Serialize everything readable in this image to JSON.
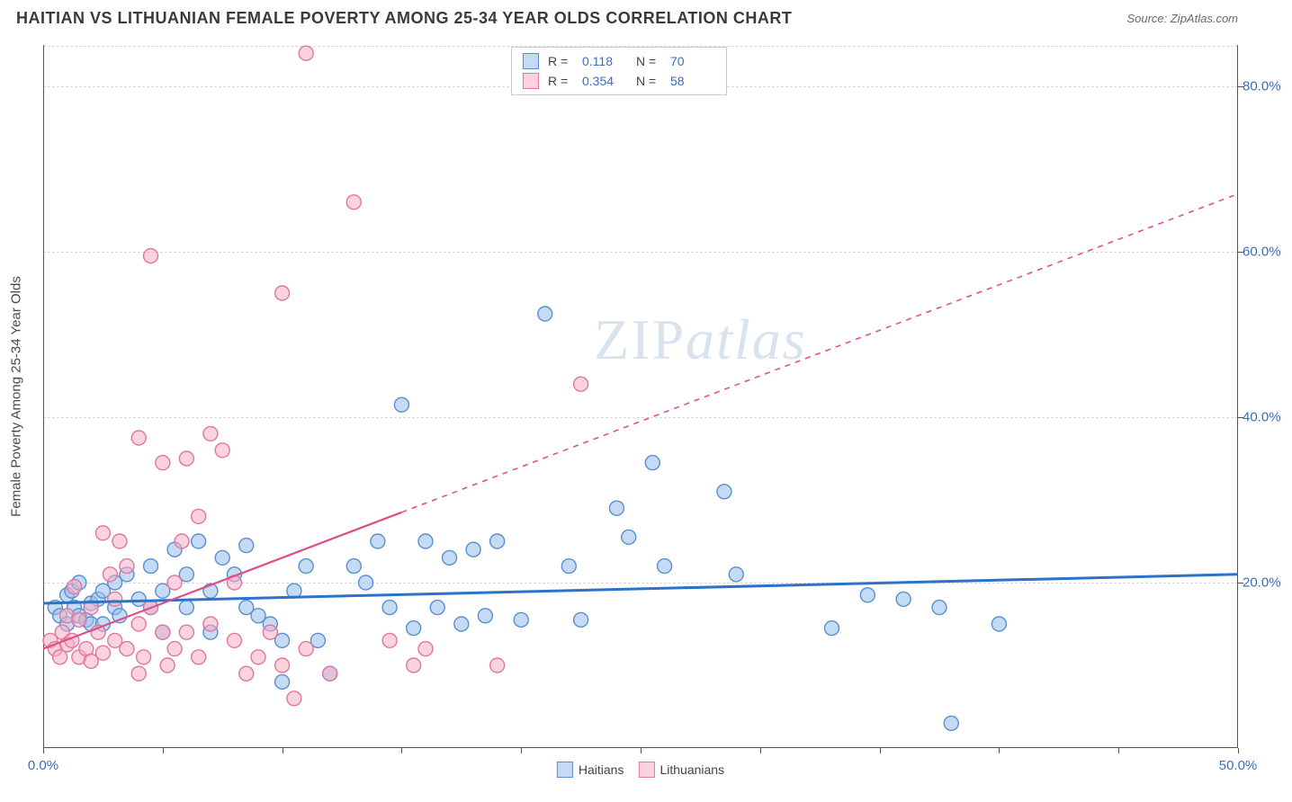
{
  "title": "HAITIAN VS LITHUANIAN FEMALE POVERTY AMONG 25-34 YEAR OLDS CORRELATION CHART",
  "source": "Source: ZipAtlas.com",
  "y_axis_label": "Female Poverty Among 25-34 Year Olds",
  "watermark_a": "ZIP",
  "watermark_b": "atlas",
  "chart": {
    "type": "scatter",
    "xlim": [
      0,
      50
    ],
    "ylim": [
      0,
      85
    ],
    "x_ticks": [
      0,
      5,
      10,
      15,
      20,
      25,
      30,
      35,
      40,
      45,
      50
    ],
    "x_tick_labels": {
      "0": "0.0%",
      "50": "50.0%"
    },
    "y_gridlines": [
      20,
      40,
      60,
      80
    ],
    "y_tick_labels": {
      "20": "20.0%",
      "40": "40.0%",
      "60": "60.0%",
      "80": "80.0%"
    },
    "background_color": "#ffffff",
    "grid_color": "#d8d8d8",
    "axis_color": "#555555",
    "tick_label_color": "#3d6db5",
    "marker_radius": 8,
    "marker_stroke_width": 1.4,
    "series": [
      {
        "name": "Haitians",
        "fill": "rgba(150,190,235,0.55)",
        "stroke": "#5a8fd0",
        "r_value": "0.118",
        "n_value": "70",
        "trend": {
          "x1": 0,
          "y1": 17.5,
          "x2": 50,
          "y2": 21.0,
          "solid_until_x": 50,
          "color": "#2b72c9",
          "width": 3
        },
        "points": [
          [
            0.5,
            17
          ],
          [
            0.7,
            16
          ],
          [
            1.0,
            18.5
          ],
          [
            1.0,
            15
          ],
          [
            1.2,
            19
          ],
          [
            1.3,
            17
          ],
          [
            1.5,
            16
          ],
          [
            1.8,
            15.5
          ],
          [
            1.5,
            20
          ],
          [
            2.0,
            17.5
          ],
          [
            2.0,
            15
          ],
          [
            2.3,
            18
          ],
          [
            2.5,
            19
          ],
          [
            2.5,
            15
          ],
          [
            3.0,
            17
          ],
          [
            3.0,
            20
          ],
          [
            3.2,
            16
          ],
          [
            3.5,
            21
          ],
          [
            4.0,
            18
          ],
          [
            4.5,
            17
          ],
          [
            4.5,
            22
          ],
          [
            5.0,
            19
          ],
          [
            5.0,
            14
          ],
          [
            5.5,
            24
          ],
          [
            6.0,
            17
          ],
          [
            6.0,
            21
          ],
          [
            6.5,
            25
          ],
          [
            7.0,
            19
          ],
          [
            7.5,
            23
          ],
          [
            7.0,
            14
          ],
          [
            8.0,
            21
          ],
          [
            8.5,
            17
          ],
          [
            8.5,
            24.5
          ],
          [
            9.0,
            16
          ],
          [
            9.5,
            15
          ],
          [
            10.0,
            13
          ],
          [
            10.0,
            8
          ],
          [
            10.5,
            19
          ],
          [
            11.0,
            22
          ],
          [
            11.5,
            13
          ],
          [
            12.0,
            9
          ],
          [
            13.0,
            22
          ],
          [
            13.5,
            20
          ],
          [
            14.0,
            25
          ],
          [
            14.5,
            17
          ],
          [
            15.0,
            41.5
          ],
          [
            15.5,
            14.5
          ],
          [
            16.0,
            25
          ],
          [
            16.5,
            17
          ],
          [
            17.0,
            23
          ],
          [
            17.5,
            15
          ],
          [
            18.0,
            24
          ],
          [
            18.5,
            16
          ],
          [
            19.0,
            25
          ],
          [
            20.0,
            15.5
          ],
          [
            21.0,
            52.5
          ],
          [
            22.0,
            22
          ],
          [
            22.5,
            15.5
          ],
          [
            24.0,
            29
          ],
          [
            24.5,
            25.5
          ],
          [
            25.5,
            34.5
          ],
          [
            26.0,
            22
          ],
          [
            28.5,
            31
          ],
          [
            29.0,
            21
          ],
          [
            33.0,
            14.5
          ],
          [
            34.5,
            18.5
          ],
          [
            36.0,
            18
          ],
          [
            37.5,
            17
          ],
          [
            40.0,
            15
          ],
          [
            38.0,
            3
          ]
        ]
      },
      {
        "name": "Lithuanians",
        "fill": "rgba(245,175,195,0.55)",
        "stroke": "#e077a0",
        "r_value": "0.354",
        "n_value": "58",
        "trend": {
          "x1": 0,
          "y1": 12,
          "x2": 50,
          "y2": 67,
          "solid_until_x": 15,
          "color": "#e04b8a",
          "width": 2.2
        },
        "points": [
          [
            0.3,
            13
          ],
          [
            0.5,
            12
          ],
          [
            0.7,
            11
          ],
          [
            0.8,
            14
          ],
          [
            1.0,
            12.5
          ],
          [
            1.0,
            16
          ],
          [
            1.2,
            13
          ],
          [
            1.3,
            19.5
          ],
          [
            1.5,
            11
          ],
          [
            1.5,
            15.5
          ],
          [
            1.8,
            12
          ],
          [
            2.0,
            17
          ],
          [
            2.0,
            10.5
          ],
          [
            2.3,
            14
          ],
          [
            2.5,
            26
          ],
          [
            2.5,
            11.5
          ],
          [
            2.8,
            21
          ],
          [
            3.0,
            13
          ],
          [
            3.0,
            18
          ],
          [
            3.2,
            25
          ],
          [
            3.5,
            12
          ],
          [
            3.5,
            22
          ],
          [
            4.0,
            15
          ],
          [
            4.0,
            9
          ],
          [
            4.0,
            37.5
          ],
          [
            4.2,
            11
          ],
          [
            4.5,
            17
          ],
          [
            4.5,
            59.5
          ],
          [
            5.0,
            14
          ],
          [
            5.0,
            34.5
          ],
          [
            5.2,
            10
          ],
          [
            5.5,
            20
          ],
          [
            5.5,
            12
          ],
          [
            5.8,
            25
          ],
          [
            6.0,
            14
          ],
          [
            6.0,
            35
          ],
          [
            6.5,
            11
          ],
          [
            6.5,
            28
          ],
          [
            7.0,
            38
          ],
          [
            7.0,
            15
          ],
          [
            7.5,
            36
          ],
          [
            8.0,
            13
          ],
          [
            8.0,
            20
          ],
          [
            8.5,
            9
          ],
          [
            9.0,
            11
          ],
          [
            9.5,
            14
          ],
          [
            10.0,
            55
          ],
          [
            10.0,
            10
          ],
          [
            10.5,
            6
          ],
          [
            11.0,
            84
          ],
          [
            11.0,
            12
          ],
          [
            12.0,
            9
          ],
          [
            13.0,
            66
          ],
          [
            14.5,
            13
          ],
          [
            15.5,
            10
          ],
          [
            16.0,
            12
          ],
          [
            19.0,
            10
          ],
          [
            22.5,
            44
          ]
        ]
      }
    ]
  },
  "legend_top": {
    "r_label": "R =",
    "n_label": "N ="
  },
  "legend_bottom": [
    {
      "label": "Haitians",
      "fill": "rgba(150,190,235,0.55)",
      "stroke": "#5a8fd0"
    },
    {
      "label": "Lithuanians",
      "fill": "rgba(245,175,195,0.55)",
      "stroke": "#e077a0"
    }
  ]
}
